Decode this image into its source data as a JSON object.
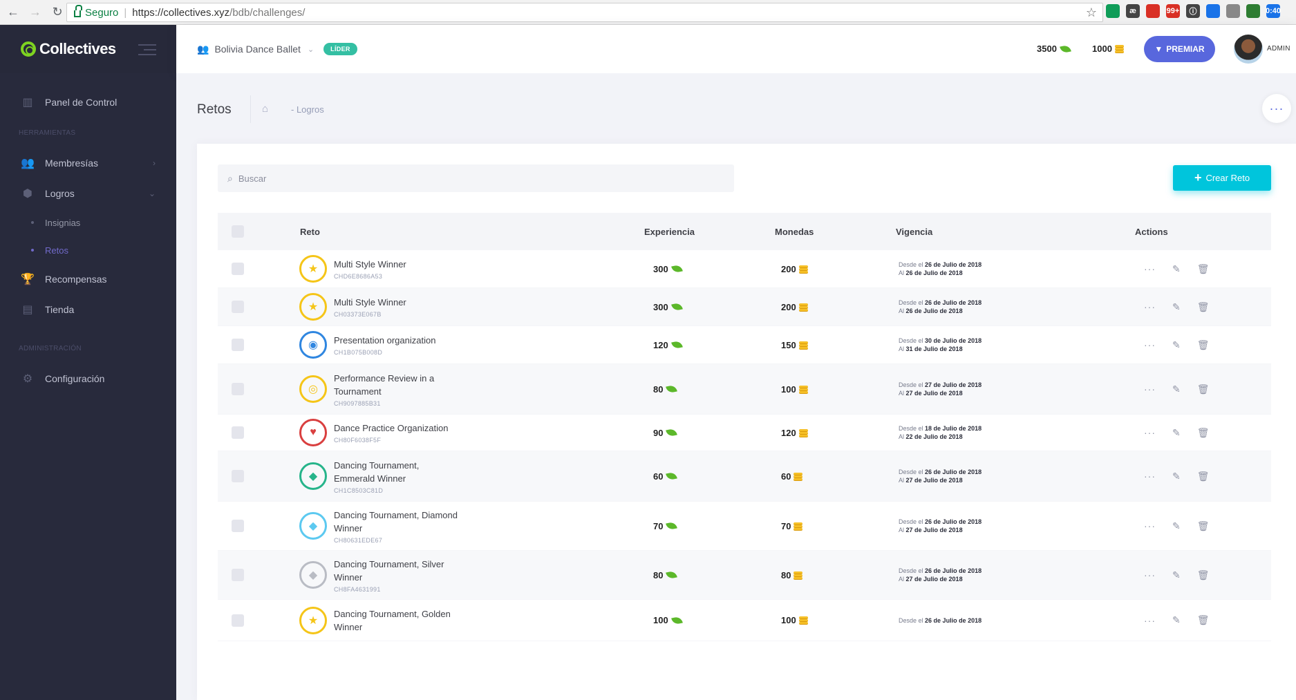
{
  "browser": {
    "secure_label": "Seguro",
    "url_host": "https://collectives.xyz",
    "url_path": "/bdb/challenges/",
    "extensions": [
      {
        "name": "green-ext-icon",
        "text": "",
        "color": "#0f9d58"
      },
      {
        "name": "ae-ext-icon",
        "text": "æ",
        "color": "#444444"
      },
      {
        "name": "pen-ext-icon",
        "text": "",
        "color": "#d93025"
      },
      {
        "name": "red-badge-ext-icon",
        "text": "99+",
        "color": "#d93025"
      },
      {
        "name": "info-ext-icon",
        "text": "ⓘ",
        "color": "#444444"
      },
      {
        "name": "sync-ext-icon",
        "text": "",
        "color": "#1a73e8"
      },
      {
        "name": "wave-ext-icon",
        "text": "",
        "color": "#888888"
      },
      {
        "name": "globe-ext-icon",
        "text": "",
        "color": "#2e7d32"
      },
      {
        "name": "time-ext-icon",
        "text": "0:40",
        "color": "#1a73e8"
      }
    ]
  },
  "sidebar": {
    "brand": "Collectives",
    "items": [
      {
        "label": "Panel de Control",
        "icon": "bar-chart-icon"
      }
    ],
    "section_tools": "HERRAMIENTAS",
    "membresias": "Membresías",
    "logros": "Logros",
    "sub_insignias": "Insignias",
    "sub_retos": "Retos",
    "recompensas": "Recompensas",
    "tienda": "Tienda",
    "section_admin": "ADMINISTRACIÓN",
    "configuracion": "Configuración"
  },
  "header": {
    "org": "Bolivia Dance Ballet",
    "role_badge": "LÍDER",
    "experience": "3500",
    "coins": "1000",
    "premiar": "PREMIAR",
    "user": "ADMIN"
  },
  "subheader": {
    "title": "Retos",
    "crumb": "- Logros"
  },
  "toolbar": {
    "search_placeholder": "Buscar",
    "create_label": "Crear Reto"
  },
  "table": {
    "columns": {
      "reto": "Reto",
      "experiencia": "Experiencia",
      "monedas": "Monedas",
      "vigencia": "Vigencia",
      "actions": "Actions"
    },
    "rows": [
      {
        "name": "Multi Style Winner",
        "code": "CHD6E8686A53",
        "exp": "300",
        "coins": "200",
        "from_prefix": "Desde el",
        "from": "26 de Julio de 2018",
        "to_prefix": "Al",
        "to": "26 de Julio de 2018",
        "badge_color": "#f5c518",
        "badge_glyph": "★"
      },
      {
        "name": "Multi Style Winner",
        "code": "CH03373E067B",
        "exp": "300",
        "coins": "200",
        "from_prefix": "Desde el",
        "from": "26 de Julio de 2018",
        "to_prefix": "Al",
        "to": "26 de Julio de 2018",
        "badge_color": "#f5c518",
        "badge_glyph": "★"
      },
      {
        "name": "Presentation organization",
        "code": "CH1B075B008D",
        "exp": "120",
        "coins": "150",
        "from_prefix": "Desde el",
        "from": "30 de Julio de 2018",
        "to_prefix": "Al",
        "to": "31 de Julio de 2018",
        "badge_color": "#2f86e0",
        "badge_glyph": "◉"
      },
      {
        "name": "Performance Review in a Tournament",
        "code": "CH9097885B31",
        "exp": "80",
        "coins": "100",
        "from_prefix": "Desde el",
        "from": "27 de Julio de 2018",
        "to_prefix": "Al",
        "to": "27 de Julio de 2018",
        "badge_color": "#f5c518",
        "badge_glyph": "◎"
      },
      {
        "name": "Dance Practice Organization",
        "code": "CH80F6038F5F",
        "exp": "90",
        "coins": "120",
        "from_prefix": "Desde el",
        "from": "18 de Julio de 2018",
        "to_prefix": "Al",
        "to": "22 de Julio de 2018",
        "badge_color": "#d93f3f",
        "badge_glyph": "♥"
      },
      {
        "name": "Dancing Tournament, Emmerald Winner",
        "code": "CH1C8503C81D",
        "exp": "60",
        "coins": "60",
        "from_prefix": "Desde el",
        "from": "26 de Julio de 2018",
        "to_prefix": "Al",
        "to": "27 de Julio de 2018",
        "badge_color": "#26b48a",
        "badge_glyph": "◆"
      },
      {
        "name": "Dancing Tournament, Diamond Winner",
        "code": "CH80631EDE67",
        "exp": "70",
        "coins": "70",
        "from_prefix": "Desde el",
        "from": "26 de Julio de 2018",
        "to_prefix": "Al",
        "to": "27 de Julio de 2018",
        "badge_color": "#5cc9f0",
        "badge_glyph": "◆"
      },
      {
        "name": "Dancing Tournament, Silver Winner",
        "code": "CH8FA4631991",
        "exp": "80",
        "coins": "80",
        "from_prefix": "Desde el",
        "from": "26 de Julio de 2018",
        "to_prefix": "Al",
        "to": "27 de Julio de 2018",
        "badge_color": "#b9bcc4",
        "badge_glyph": "◆"
      },
      {
        "name": "Dancing Tournament, Golden Winner",
        "code": "",
        "exp": "100",
        "coins": "100",
        "from_prefix": "Desde el",
        "from": "26 de Julio de 2018",
        "to_prefix": "",
        "to": "",
        "badge_color": "#f5c518",
        "badge_glyph": "★"
      }
    ]
  }
}
